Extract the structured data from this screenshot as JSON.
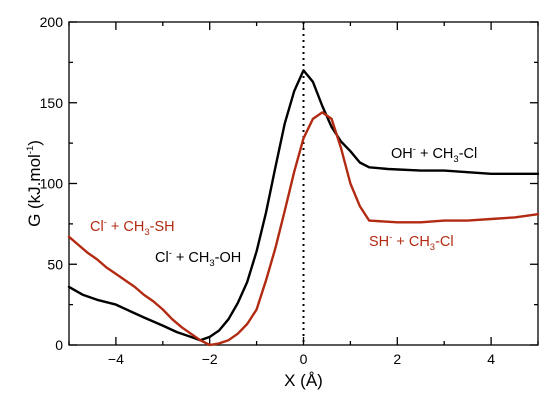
{
  "chart_data": {
    "type": "line",
    "xlabel": "X (Å)",
    "ylabel": {
      "prefix": "G (kJ.mol",
      "sup": "-1",
      "suffix": ")"
    },
    "xlim": [
      -5,
      5
    ],
    "ylim": [
      0,
      200
    ],
    "xticks": [
      -4,
      -2,
      0,
      2,
      4
    ],
    "yticks": [
      0,
      50,
      100,
      150,
      200
    ],
    "grid": false,
    "vline": {
      "x": 0,
      "style": "dotted"
    },
    "series": [
      {
        "color": "#000000",
        "x": [
          -5.0,
          -4.7,
          -4.4,
          -4.0,
          -3.7,
          -3.4,
          -3.0,
          -2.7,
          -2.4,
          -2.2,
          -2.0,
          -1.8,
          -1.6,
          -1.4,
          -1.2,
          -1.0,
          -0.8,
          -0.6,
          -0.4,
          -0.2,
          0.0,
          0.2,
          0.4,
          0.6,
          0.8,
          1.0,
          1.2,
          1.4,
          1.8,
          2.5,
          3.0,
          3.5,
          4.0,
          4.5,
          5.0
        ],
        "y": [
          36,
          31,
          28,
          25,
          21,
          17,
          12,
          8,
          5,
          3,
          5,
          9,
          16,
          26,
          39,
          58,
          82,
          110,
          137,
          157,
          170,
          163,
          148,
          135,
          126,
          120,
          113,
          110,
          109,
          108,
          108,
          107,
          106,
          106,
          106
        ]
      },
      {
        "color": "#b22a12",
        "x": [
          -5.0,
          -4.8,
          -4.6,
          -4.4,
          -4.2,
          -4.0,
          -3.8,
          -3.6,
          -3.4,
          -3.2,
          -3.0,
          -2.8,
          -2.6,
          -2.4,
          -2.2,
          -2.0,
          -1.8,
          -1.6,
          -1.4,
          -1.2,
          -1.0,
          -0.8,
          -0.6,
          -0.4,
          -0.2,
          0.0,
          0.2,
          0.4,
          0.6,
          0.8,
          1.0,
          1.2,
          1.4,
          2.0,
          2.5,
          3.0,
          3.5,
          4.0,
          4.5,
          5.0
        ],
        "y": [
          67,
          62,
          57,
          53,
          48,
          44,
          40,
          36,
          31,
          27,
          22,
          16,
          11,
          7,
          3,
          0,
          1,
          3,
          7,
          13,
          22,
          40,
          60,
          83,
          107,
          128,
          140,
          144,
          140,
          122,
          100,
          86,
          77,
          76,
          76,
          77,
          77,
          78,
          79,
          81
        ]
      }
    ],
    "annotations": [
      {
        "name": "annotation-oh-ch3cl",
        "color": "#000000",
        "parts": [
          [
            "OH",
            ""
          ],
          [
            "-",
            "sup"
          ],
          [
            " + CH",
            ""
          ],
          [
            "3",
            "sub"
          ],
          [
            "-Cl",
            ""
          ]
        ]
      },
      {
        "name": "annotation-cl-ch3oh",
        "color": "#000000",
        "parts": [
          [
            "Cl",
            ""
          ],
          [
            "-",
            "sup"
          ],
          [
            " + CH",
            ""
          ],
          [
            "3",
            "sub"
          ],
          [
            "-OH",
            ""
          ]
        ]
      },
      {
        "name": "annotation-cl-ch3sh",
        "color": "#b22a12",
        "parts": [
          [
            "Cl",
            ""
          ],
          [
            "-",
            "sup"
          ],
          [
            " + CH",
            ""
          ],
          [
            "3",
            "sub"
          ],
          [
            "-SH",
            ""
          ]
        ]
      },
      {
        "name": "annotation-sh-ch3cl",
        "color": "#b22a12",
        "parts": [
          [
            "SH",
            ""
          ],
          [
            "-",
            "sup"
          ],
          [
            " + CH",
            ""
          ],
          [
            "3",
            "sub"
          ],
          [
            "-Cl",
            ""
          ]
        ]
      }
    ]
  }
}
